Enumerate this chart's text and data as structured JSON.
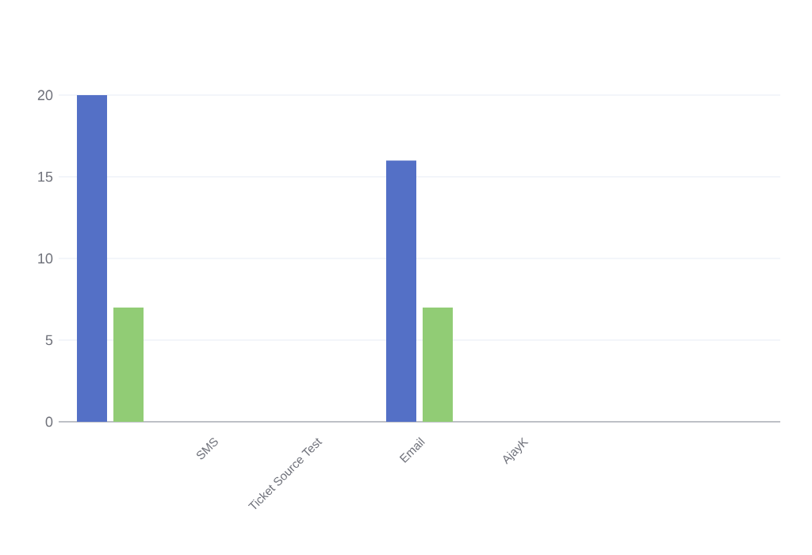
{
  "chart_data": {
    "type": "bar",
    "categories": [
      null,
      "SMS",
      "Ticket Source Test",
      "Email",
      "AjayK",
      null,
      null
    ],
    "series": [
      {
        "color": "#5470c6",
        "values": [
          20,
          0,
          0,
          16,
          0,
          0,
          0
        ]
      },
      {
        "color": "#91cc75",
        "values": [
          7,
          0,
          0,
          7,
          0,
          0,
          0
        ]
      }
    ],
    "ylim": [
      0,
      20
    ],
    "yticks": [
      0,
      5,
      10,
      15,
      20
    ],
    "grid": "y"
  }
}
